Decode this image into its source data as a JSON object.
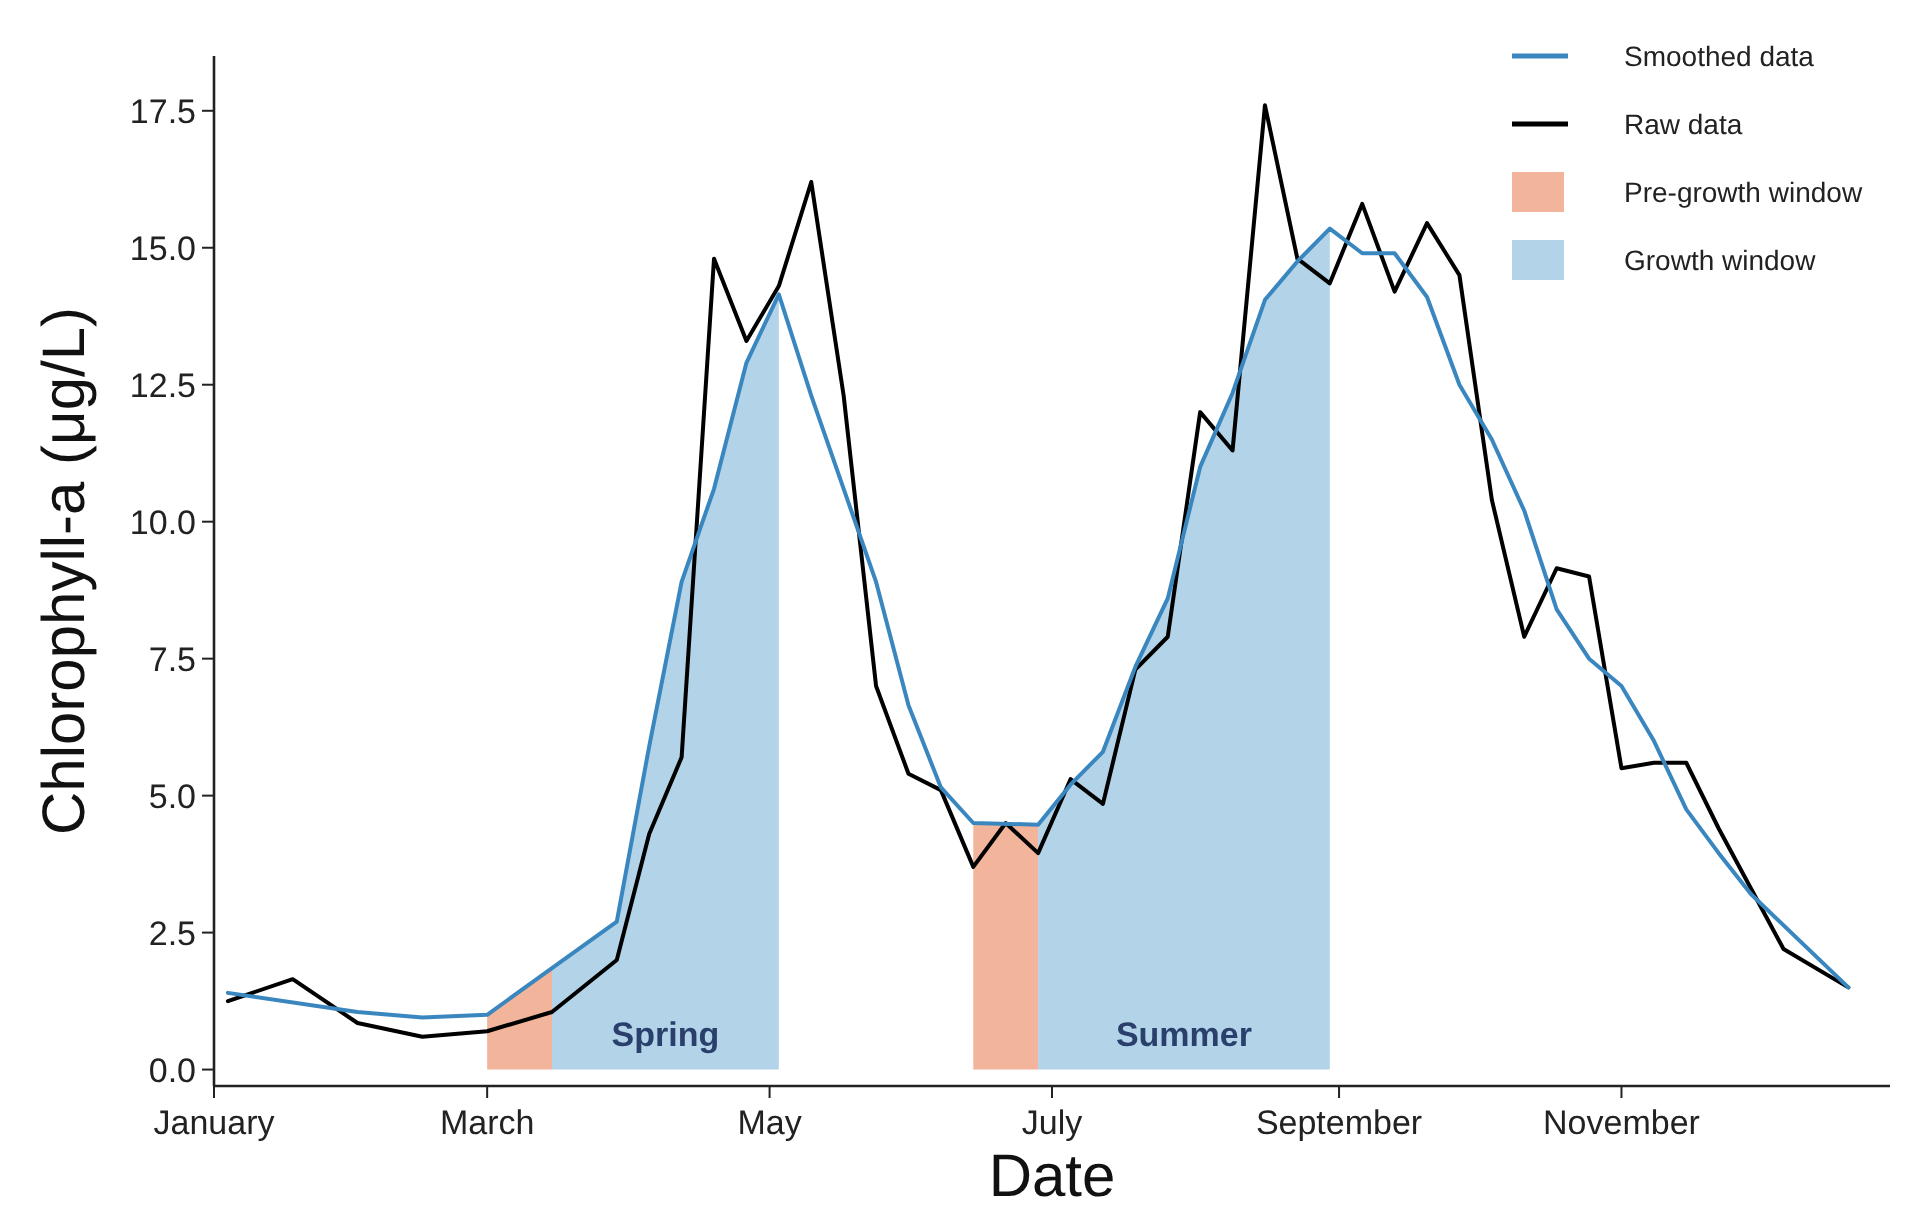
{
  "chart_data": {
    "type": "line",
    "xlabel": "Date",
    "ylabel": "Chlorophyll-a (μg/L)",
    "xlim": [
      "--01-01",
      "--12-29"
    ],
    "xticks": [
      {
        "value": "--01-01",
        "label": "January"
      },
      {
        "value": "--03-01",
        "label": "March"
      },
      {
        "value": "--05-01",
        "label": "May"
      },
      {
        "value": "--07-01",
        "label": "July"
      },
      {
        "value": "--09-01",
        "label": "September"
      },
      {
        "value": "--11-01",
        "label": "November"
      }
    ],
    "ylim": [
      -0.3,
      18.5
    ],
    "yticks": [
      {
        "value": 0,
        "label": "0.0"
      },
      {
        "value": 2.5,
        "label": "2.5"
      },
      {
        "value": 5,
        "label": "5.0"
      },
      {
        "value": 7.5,
        "label": "7.5"
      },
      {
        "value": 10,
        "label": "10.0"
      },
      {
        "value": 12.5,
        "label": "12.5"
      },
      {
        "value": 15,
        "label": "15.0"
      },
      {
        "value": 17.5,
        "label": "17.5"
      }
    ],
    "grid": false,
    "legend": "top right",
    "marker": "none",
    "line_style": "solid",
    "series": [
      {
        "name": "Growth window",
        "type": "area",
        "color": "#b3d4e8",
        "x": [
          "--03-15",
          "--03-29",
          "--04-05",
          "--04-12",
          "--04-19",
          "--04-26",
          "--05-03",
          "--06-01",
          "--06-28",
          "--07-05",
          "--07-12",
          "--07-19",
          "--07-26",
          "--08-02",
          "--08-09",
          "--08-16",
          "--08-23",
          "--08-30"
        ],
        "values": [
          1.85,
          2.7,
          5.9,
          8.9,
          10.6,
          12.9,
          14.15,
          null,
          4.47,
          5.2,
          5.8,
          7.35,
          8.6,
          11.0,
          12.35,
          14.05,
          14.75,
          15.35
        ]
      },
      {
        "name": "Pre-growth window",
        "type": "area",
        "color": "#f2b49a",
        "x": [
          "--03-01",
          "--03-15",
          "--05-01",
          "--06-14",
          "--06-28"
        ],
        "values": [
          1.0,
          1.85,
          null,
          4.5,
          4.47
        ]
      },
      {
        "name": "Raw data",
        "color": "#000000",
        "x": [
          "--01-04",
          "--01-18",
          "--02-01",
          "--02-15",
          "--03-01",
          "--03-15",
          "--03-29",
          "--04-05",
          "--04-12",
          "--04-19",
          "--04-26",
          "--05-03",
          "--05-10",
          "--05-17",
          "--05-24",
          "--05-31",
          "--06-07",
          "--06-14",
          "--06-21",
          "--06-28",
          "--07-05",
          "--07-12",
          "--07-19",
          "--07-26",
          "--08-02",
          "--08-09",
          "--08-16",
          "--08-23",
          "--08-30",
          "--09-06",
          "--09-13",
          "--09-20",
          "--09-27",
          "--10-04",
          "--10-11",
          "--10-18",
          "--10-25",
          "--11-01",
          "--11-08",
          "--11-15",
          "--11-22",
          "--11-29",
          "--12-06",
          "--12-20"
        ],
        "values": [
          1.25,
          1.65,
          0.85,
          0.6,
          0.7,
          1.05,
          2.0,
          4.3,
          5.7,
          14.8,
          13.3,
          14.3,
          16.2,
          12.3,
          7.0,
          5.4,
          5.1,
          3.7,
          4.5,
          3.95,
          5.3,
          4.85,
          7.3,
          7.9,
          12.0,
          11.3,
          17.6,
          14.8,
          14.35,
          15.8,
          14.2,
          15.45,
          14.5,
          10.4,
          7.9,
          9.15,
          9.0,
          5.5,
          5.6,
          5.6,
          4.4,
          3.3,
          2.2,
          1.5
        ]
      },
      {
        "name": "Smoothed data",
        "color": "#3a87c0",
        "x": [
          "--01-04",
          "--02-01",
          "--02-15",
          "--03-01",
          "--03-15",
          "--03-29",
          "--04-05",
          "--04-12",
          "--04-19",
          "--04-26",
          "--05-03",
          "--05-10",
          "--05-17",
          "--05-24",
          "--05-31",
          "--06-07",
          "--06-14",
          "--06-28",
          "--07-05",
          "--07-12",
          "--07-19",
          "--07-26",
          "--08-02",
          "--08-09",
          "--08-16",
          "--08-23",
          "--08-30",
          "--09-06",
          "--09-13",
          "--09-20",
          "--09-27",
          "--10-04",
          "--10-11",
          "--10-18",
          "--10-25",
          "--11-01",
          "--11-08",
          "--11-15",
          "--11-22",
          "--11-29",
          "--12-20"
        ],
        "values": [
          1.4,
          1.05,
          0.95,
          1.0,
          1.85,
          2.7,
          5.9,
          8.9,
          10.6,
          12.9,
          14.15,
          12.3,
          10.6,
          8.9,
          6.65,
          5.15,
          4.5,
          4.47,
          5.2,
          5.8,
          7.35,
          8.6,
          11.0,
          12.35,
          14.05,
          14.75,
          15.35,
          14.9,
          14.9,
          14.1,
          12.5,
          11.5,
          10.2,
          8.4,
          7.5,
          7.0,
          6.0,
          4.75,
          3.95,
          3.2,
          1.5
        ]
      }
    ],
    "annotations": [
      "Spring",
      "Summer"
    ]
  }
}
